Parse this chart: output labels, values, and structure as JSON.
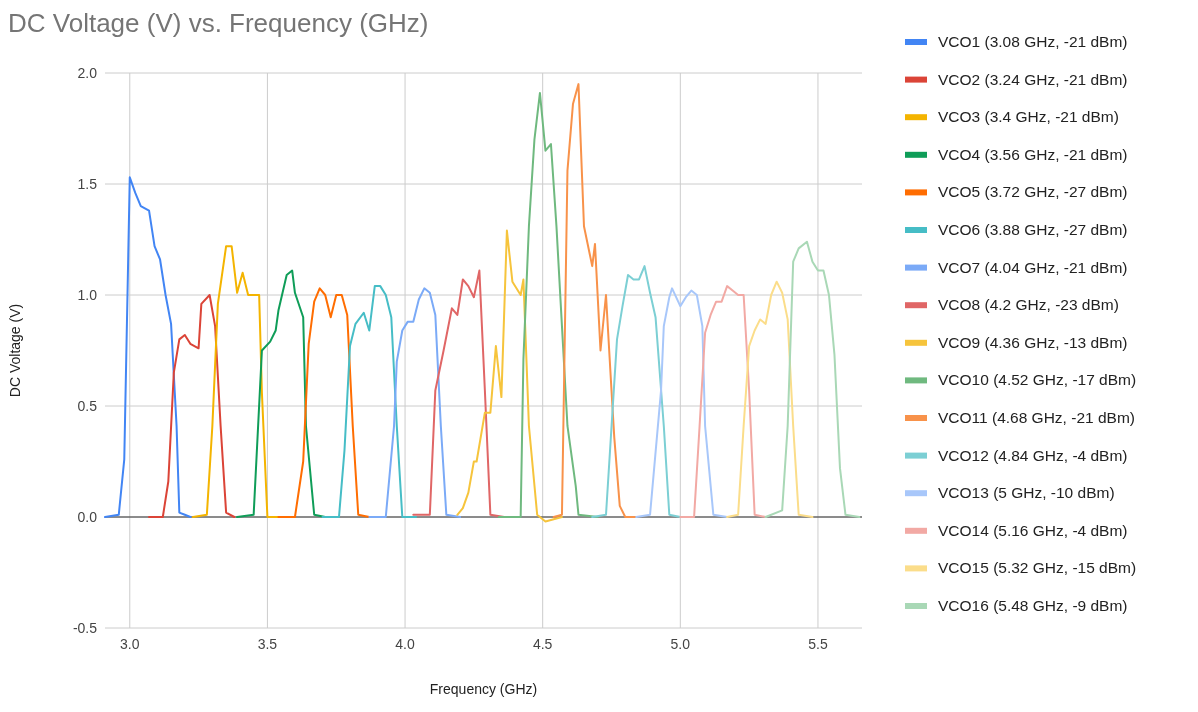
{
  "chart_data": {
    "type": "line",
    "title": "DC Voltage (V) vs. Frequency (GHz)",
    "xlabel": "Frequency (GHz)",
    "ylabel": "DC Voltage (V)",
    "xlim": [
      2.91,
      5.66
    ],
    "xticks": [
      {
        "value": 3,
        "label": "3.0"
      },
      {
        "value": 3.5,
        "label": "3.5"
      },
      {
        "value": 4,
        "label": "4.0"
      },
      {
        "value": 4.5,
        "label": "4.5"
      },
      {
        "value": 5,
        "label": "5.0"
      },
      {
        "value": 5.5,
        "label": "5.5"
      }
    ],
    "ylim": [
      -0.5,
      2.0
    ],
    "yticks": [
      -0.5,
      {
        "value": 0,
        "label": "0.0"
      },
      0.5,
      {
        "value": 1,
        "label": "1.0"
      },
      1.5,
      {
        "value": 2,
        "label": "2.0"
      }
    ],
    "grid": true,
    "legend": "right",
    "marker": "none",
    "line_style": "solid",
    "series": [
      {
        "name": "VCO1 (3.08 GHz, -21 dBm)",
        "color": "#4285f4",
        "x": [
          2.91,
          2.96,
          2.98,
          3.0,
          3.02,
          3.04,
          3.07,
          3.09,
          3.11,
          3.13,
          3.15,
          3.17,
          3.18,
          3.2,
          3.22
        ],
        "values": [
          0,
          0.01,
          0.26,
          1.53,
          1.46,
          1.4,
          1.38,
          1.22,
          1.16,
          1.0,
          0.87,
          0.41,
          0.02,
          0.01,
          0
        ]
      },
      {
        "name": "VCO2 (3.24 GHz, -21 dBm)",
        "color": "#db4437",
        "x": [
          3.07,
          3.12,
          3.14,
          3.16,
          3.18,
          3.2,
          3.22,
          3.25,
          3.26,
          3.29,
          3.31,
          3.33,
          3.35,
          3.38
        ],
        "values": [
          0,
          0,
          0.16,
          0.65,
          0.8,
          0.82,
          0.78,
          0.76,
          0.96,
          1.0,
          0.86,
          0.41,
          0.02,
          0
        ]
      },
      {
        "name": "VCO3 (3.4 GHz, -21 dBm)",
        "color": "#f4b400",
        "x": [
          3.23,
          3.28,
          3.3,
          3.32,
          3.35,
          3.37,
          3.39,
          3.41,
          3.43,
          3.47,
          3.48,
          3.5,
          3.54
        ],
        "values": [
          0,
          0.01,
          0.41,
          0.96,
          1.22,
          1.22,
          1.01,
          1.1,
          1.0,
          1.0,
          0.56,
          0,
          0
        ]
      },
      {
        "name": "VCO4 (3.56 GHz, -21 dBm)",
        "color": "#0f9d58",
        "x": [
          3.39,
          3.45,
          3.48,
          3.51,
          3.53,
          3.54,
          3.57,
          3.59,
          3.6,
          3.63,
          3.64,
          3.67,
          3.71
        ],
        "values": [
          0,
          0.01,
          0.75,
          0.79,
          0.84,
          0.93,
          1.09,
          1.11,
          1.01,
          0.9,
          0.41,
          0.01,
          0
        ]
      },
      {
        "name": "VCO5 (3.72 GHz, -27 dBm)",
        "color": "#ff6d01",
        "x": [
          3.54,
          3.6,
          3.63,
          3.65,
          3.67,
          3.69,
          3.71,
          3.73,
          3.75,
          3.77,
          3.79,
          3.81,
          3.83,
          3.87
        ],
        "values": [
          0,
          0,
          0.25,
          0.78,
          0.97,
          1.03,
          1.0,
          0.9,
          1.0,
          1.0,
          0.91,
          0.41,
          0.01,
          0
        ]
      },
      {
        "name": "VCO6 (3.88 GHz, -27 dBm)",
        "color": "#46bdc6",
        "x": [
          3.7,
          3.76,
          3.78,
          3.8,
          3.82,
          3.85,
          3.87,
          3.89,
          3.91,
          3.93,
          3.95,
          3.97,
          3.99,
          4.04
        ],
        "values": [
          0,
          0,
          0.3,
          0.77,
          0.87,
          0.92,
          0.84,
          1.04,
          1.04,
          1.0,
          0.9,
          0.41,
          0,
          0
        ]
      },
      {
        "name": "VCO7 (4.04 GHz, -21 dBm)",
        "color": "#7baaf7",
        "x": [
          3.87,
          3.93,
          3.96,
          3.97,
          3.99,
          4.01,
          4.03,
          4.05,
          4.07,
          4.09,
          4.11,
          4.13,
          4.15,
          4.2
        ],
        "values": [
          0,
          0,
          0.41,
          0.7,
          0.84,
          0.88,
          0.88,
          0.98,
          1.03,
          1.01,
          0.91,
          0.41,
          0.01,
          0
        ]
      },
      {
        "name": "VCO8 (4.2 GHz, -23 dBm)",
        "color": "#e06666",
        "x": [
          4.03,
          4.09,
          4.11,
          4.14,
          4.17,
          4.19,
          4.21,
          4.23,
          4.25,
          4.27,
          4.29,
          4.31,
          4.36
        ],
        "values": [
          0.01,
          0.01,
          0.57,
          0.75,
          0.94,
          0.91,
          1.07,
          1.04,
          0.99,
          1.11,
          0.57,
          0.01,
          0
        ]
      },
      {
        "name": "VCO9 (4.36 GHz, -13 dBm)",
        "color": "#f6c43c",
        "x": [
          4.19,
          4.21,
          4.23,
          4.25,
          4.26,
          4.29,
          4.31,
          4.33,
          4.35,
          4.37,
          4.39,
          4.42,
          4.43,
          4.45,
          4.48,
          4.51,
          4.57
        ],
        "values": [
          0.01,
          0.04,
          0.11,
          0.25,
          0.25,
          0.47,
          0.47,
          0.77,
          0.54,
          1.29,
          1.06,
          1.0,
          1.07,
          0.41,
          0.01,
          -0.02,
          0
        ]
      },
      {
        "name": "VCO10 (4.52 GHz, -17 dBm)",
        "color": "#6fb97f",
        "x": [
          4.34,
          4.42,
          4.43,
          4.45,
          4.47,
          4.49,
          4.51,
          4.53,
          4.55,
          4.57,
          4.59,
          4.62,
          4.63,
          4.7
        ],
        "values": [
          0,
          0,
          0.71,
          1.31,
          1.7,
          1.91,
          1.65,
          1.68,
          1.31,
          0.86,
          0.41,
          0.14,
          0.01,
          0
        ]
      },
      {
        "name": "VCO11 (4.68 GHz, -21 dBm)",
        "color": "#f8924a",
        "x": [
          4.54,
          4.57,
          4.59,
          4.61,
          4.63,
          4.65,
          4.68,
          4.69,
          4.71,
          4.73,
          4.75,
          4.76,
          4.78,
          4.8,
          4.84
        ],
        "values": [
          0,
          0.01,
          1.56,
          1.86,
          1.95,
          1.31,
          1.13,
          1.23,
          0.75,
          1.0,
          0.57,
          0.36,
          0.05,
          0,
          0
        ]
      },
      {
        "name": "VCO12 (4.84 GHz, -4 dBm)",
        "color": "#7ccfd4",
        "x": [
          4.68,
          4.73,
          4.77,
          4.79,
          4.81,
          4.83,
          4.85,
          4.87,
          4.89,
          4.91,
          4.94,
          4.96,
          5.0
        ],
        "values": [
          0,
          0.01,
          0.8,
          0.95,
          1.09,
          1.07,
          1.07,
          1.13,
          1.01,
          0.9,
          0.41,
          0.01,
          0
        ]
      },
      {
        "name": "VCO13 (5 GHz, -10 dBm)",
        "color": "#a8c7fa",
        "x": [
          4.84,
          4.89,
          4.93,
          4.94,
          4.96,
          4.97,
          5.0,
          5.02,
          5.04,
          5.06,
          5.08,
          5.09,
          5.12,
          5.17
        ],
        "values": [
          0,
          0.01,
          0.57,
          0.86,
          0.99,
          1.03,
          0.95,
          0.99,
          1.02,
          1.0,
          0.86,
          0.41,
          0.01,
          0
        ]
      },
      {
        "name": "VCO14 (5.16 GHz, -4 dBm)",
        "color": "#f2a9a4",
        "x": [
          5.0,
          5.05,
          5.07,
          5.09,
          5.11,
          5.13,
          5.15,
          5.17,
          5.19,
          5.21,
          5.23,
          5.25,
          5.27,
          5.31
        ],
        "values": [
          0,
          0,
          0.41,
          0.83,
          0.91,
          0.97,
          0.97,
          1.04,
          1.02,
          1.0,
          1.0,
          0.57,
          0.01,
          0
        ]
      },
      {
        "name": "VCO15 (5.32 GHz, -15 dBm)",
        "color": "#fbdd8a",
        "x": [
          5.17,
          5.21,
          5.23,
          5.25,
          5.27,
          5.29,
          5.31,
          5.33,
          5.35,
          5.37,
          5.39,
          5.41,
          5.43,
          5.48
        ],
        "values": [
          0,
          0.01,
          0.41,
          0.77,
          0.84,
          0.89,
          0.87,
          1.0,
          1.06,
          1.01,
          0.89,
          0.41,
          0.01,
          0
        ]
      },
      {
        "name": "VCO16 (5.48 GHz, -9 dBm)",
        "color": "#a9d8b6",
        "x": [
          5.31,
          5.37,
          5.39,
          5.41,
          5.43,
          5.46,
          5.48,
          5.5,
          5.52,
          5.54,
          5.56,
          5.58,
          5.6,
          5.65
        ],
        "values": [
          0,
          0.03,
          0.41,
          1.15,
          1.21,
          1.24,
          1.15,
          1.11,
          1.11,
          1.0,
          0.73,
          0.22,
          0.01,
          0
        ]
      }
    ]
  }
}
